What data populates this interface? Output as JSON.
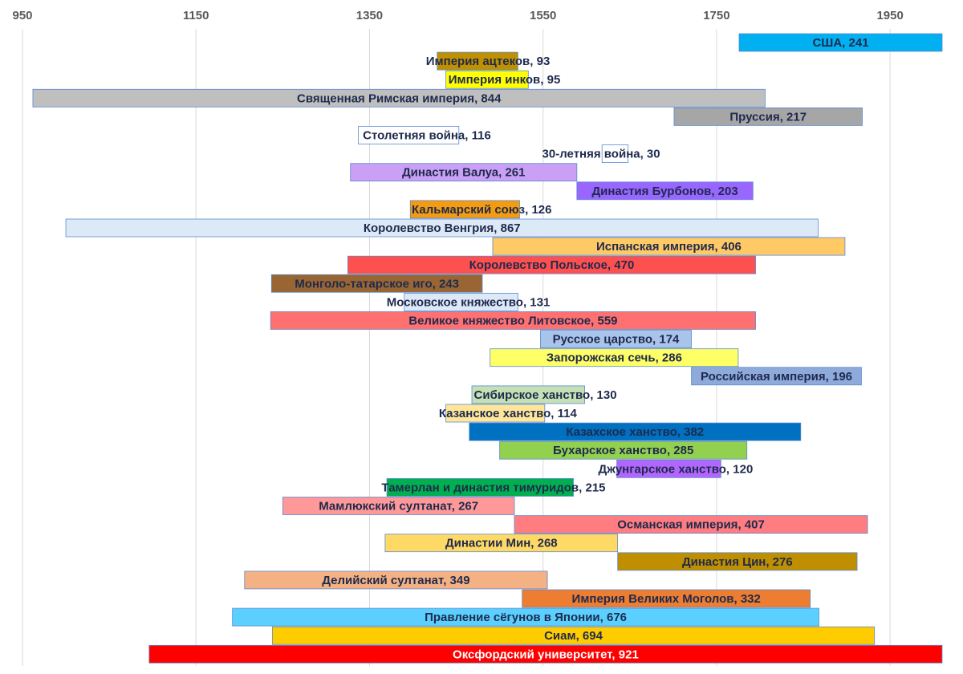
{
  "chart_data": {
    "type": "bar",
    "orientation": "horizontal-range",
    "title": "",
    "xlabel": "",
    "ylabel": "",
    "xlim": [
      950,
      2010
    ],
    "x_ticks": [
      950,
      1150,
      1350,
      1550,
      1750,
      1950
    ],
    "grid": true,
    "legend": "none",
    "series": [
      {
        "name": "США",
        "start": 1776,
        "end": 2017,
        "value": 241,
        "label": "США, 241",
        "color": "#00b0f0",
        "label_inside": true
      },
      {
        "name": "Империя ацтеков",
        "start": 1428,
        "end": 1521,
        "value": 93,
        "label": "Империя ацтеков, 93",
        "color": "#bf9000"
      },
      {
        "name": "Империя инков",
        "start": 1438,
        "end": 1533,
        "value": 95,
        "label": "Империя инков, 95",
        "color": "#ffff00"
      },
      {
        "name": "Священная Римская империя",
        "start": 962,
        "end": 1806,
        "value": 844,
        "label": "Священная Римская империя, 844",
        "color": "#bfbfbf",
        "label_inside": true
      },
      {
        "name": "Пруссия",
        "start": 1701,
        "end": 1918,
        "value": 217,
        "label": "Пруссия, 217",
        "color": "#a6a6a6",
        "label_inside": true
      },
      {
        "name": "Столетняя война",
        "start": 1337,
        "end": 1453,
        "value": 116,
        "label": "Столетняя война, 116",
        "color": "#ffffff"
      },
      {
        "name": "30-летняя война",
        "start": 1618,
        "end": 1648,
        "value": 30,
        "label": "30-летняя война, 30",
        "color": "#ffffff"
      },
      {
        "name": "Династия Валуа",
        "start": 1328,
        "end": 1589,
        "value": 261,
        "label": "Династия Валуа, 261",
        "color": "#c9a0f5",
        "label_inside": true
      },
      {
        "name": "Династия Бурбонов",
        "start": 1589,
        "end": 1792,
        "value": 203,
        "label": "Династия Бурбонов, 203",
        "color": "#9966ff",
        "label_inside": true
      },
      {
        "name": "Кальмарский союз",
        "start": 1397,
        "end": 1523,
        "value": 126,
        "label": "Кальмарский союз, 126",
        "color": "#f39c12"
      },
      {
        "name": "Королевство Венгрия",
        "start": 1000,
        "end": 1867,
        "value": 867,
        "label": "Королевство Венгрия, 867",
        "color": "#dde9f7",
        "label_inside": true
      },
      {
        "name": "Испанская империя",
        "start": 1492,
        "end": 1898,
        "value": 406,
        "label": "Испанская империя, 406",
        "color": "#ffc966",
        "label_inside": true
      },
      {
        "name": "Королевство Польское",
        "start": 1325,
        "end": 1795,
        "value": 470,
        "label": "Королевство Польское, 470",
        "color": "#ff5050",
        "label_inside": true
      },
      {
        "name": "Монголо-татарское иго",
        "start": 1237,
        "end": 1480,
        "value": 243,
        "label": "Монголо-татарское иго, 243",
        "color": "#996633",
        "label_inside": true
      },
      {
        "name": "Московское княжество",
        "start": 1390,
        "end": 1521,
        "value": 131,
        "label": "Московское княжество, 131",
        "color": "#dde9f7"
      },
      {
        "name": "Великое княжество Литовское",
        "start": 1236,
        "end": 1795,
        "value": 559,
        "label": "Великое княжество Литовское, 559",
        "color": "#ff7070",
        "label_inside": true
      },
      {
        "name": "Русское царство",
        "start": 1547,
        "end": 1721,
        "value": 174,
        "label": "Русское царство, 174",
        "color": "#a9c4eb",
        "label_inside": true
      },
      {
        "name": "Запорожская сечь",
        "start": 1489,
        "end": 1775,
        "value": 286,
        "label": "Запорожская сечь, 286",
        "color": "#ffff66",
        "label_inside": true
      },
      {
        "name": "Российская империя",
        "start": 1721,
        "end": 1917,
        "value": 196,
        "label": "Российская империя, 196",
        "color": "#8eaadb",
        "label_inside": true
      },
      {
        "name": "Сибирское ханство",
        "start": 1468,
        "end": 1598,
        "value": 130,
        "label": "Сибирское ханство, 130",
        "color": "#c5e0b4"
      },
      {
        "name": "Казанское ханство",
        "start": 1438,
        "end": 1552,
        "value": 114,
        "label": "Казанское ханство, 114",
        "color": "#ffe699"
      },
      {
        "name": "Казахское ханство",
        "start": 1465,
        "end": 1847,
        "value": 382,
        "label": "Казахское ханство, 382",
        "color": "#0070c0",
        "label_inside": true
      },
      {
        "name": "Бухарское ханство",
        "start": 1500,
        "end": 1785,
        "value": 285,
        "label": "Бухарское ханство, 285",
        "color": "#92d050",
        "label_inside": true
      },
      {
        "name": "Джунгарское ханство",
        "start": 1635,
        "end": 1755,
        "value": 120,
        "label": "Джунгарское ханство, 120",
        "color": "#b266ff"
      },
      {
        "name": "Тамерлан и династия тимуридов",
        "start": 1370,
        "end": 1585,
        "value": 215,
        "label": "Тамерлан и династия тимуридов, 215",
        "color": "#00b050"
      },
      {
        "name": "Мамлюкский султанат",
        "start": 1250,
        "end": 1517,
        "value": 267,
        "label": "Мамлюкский султанат, 267",
        "color": "#ff9999",
        "label_inside": true
      },
      {
        "name": "Османская империя",
        "start": 1517,
        "end": 1924,
        "value": 407,
        "label": "Османская империя, 407",
        "color": "#ff7c80",
        "label_inside": true
      },
      {
        "name": "Династии Мин",
        "start": 1368,
        "end": 1636,
        "value": 268,
        "label": "Династии Мин, 268",
        "color": "#ffd966",
        "label_inside": true
      },
      {
        "name": "Династия Цин",
        "start": 1636,
        "end": 1912,
        "value": 276,
        "label": "Династия Цин, 276",
        "color": "#bf8f00",
        "label_inside": true
      },
      {
        "name": "Делийский султанат",
        "start": 1206,
        "end": 1555,
        "value": 349,
        "label": "Делийский султанат, 349",
        "color": "#f4b183",
        "label_inside": true
      },
      {
        "name": "Империя Великих Моголов",
        "start": 1526,
        "end": 1858,
        "value": 332,
        "label": "Империя Великих Моголов, 332",
        "color": "#ed7d31",
        "label_inside": true
      },
      {
        "name": "Правление сёгунов в Японии",
        "start": 1192,
        "end": 1868,
        "value": 676,
        "label": "Правление сёгунов в Японии, 676",
        "color": "#5bd0ff",
        "label_inside": true
      },
      {
        "name": "Сиам",
        "start": 1238,
        "end": 1932,
        "value": 694,
        "label": "Сиам, 694",
        "color": "#ffcc00",
        "label_inside": true
      },
      {
        "name": "Оксфордский университет",
        "start": 1096,
        "end": 2017,
        "value": 921,
        "label": "Оксфордский университет, 921",
        "color": "#ff0000",
        "label_inside": true,
        "label_color": "#ffffff"
      }
    ]
  }
}
